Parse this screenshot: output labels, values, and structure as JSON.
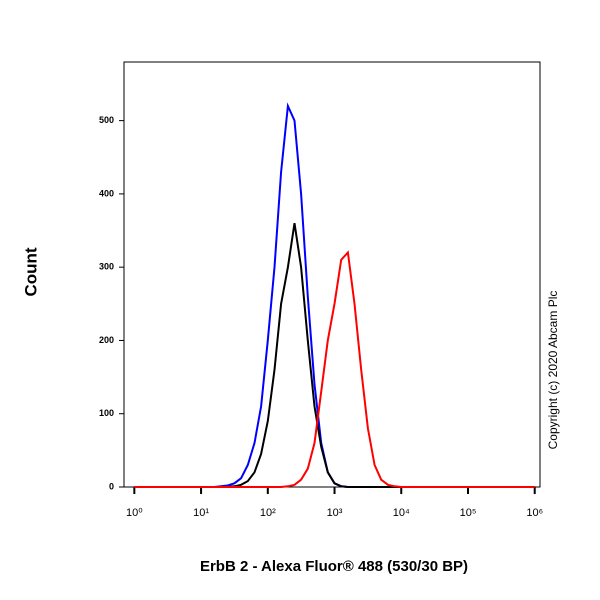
{
  "chart_data": {
    "type": "line",
    "xlabel": "ErbB 2 - Alexa Fluor® 488 (530/30 BP)",
    "ylabel": "Count",
    "annotation": "Copyright (c) 2020 Abcam Plc",
    "xscale": "log",
    "x": [
      1,
      10,
      12.6,
      15.8,
      20,
      25.1,
      31.6,
      39.8,
      50.1,
      63.1,
      79.4,
      100,
      126,
      158,
      200,
      251,
      316,
      398,
      501,
      631,
      794,
      1000,
      1259,
      1585,
      1995,
      2512,
      3162,
      3981,
      5012,
      6310,
      7943,
      10000,
      1000000
    ],
    "series": [
      {
        "name": "blue",
        "color": "#0000ff",
        "values": [
          0,
          0,
          0,
          0,
          1,
          2,
          5,
          12,
          30,
          60,
          110,
          200,
          300,
          430,
          520,
          500,
          400,
          260,
          140,
          60,
          20,
          5,
          1,
          0,
          0,
          0,
          0,
          0,
          0,
          0,
          0,
          0,
          0
        ]
      },
      {
        "name": "black",
        "color": "#000000",
        "values": [
          0,
          0,
          0,
          0,
          0,
          0,
          1,
          3,
          8,
          20,
          45,
          90,
          160,
          250,
          300,
          360,
          300,
          200,
          110,
          55,
          20,
          5,
          1,
          0,
          0,
          0,
          0,
          0,
          0,
          0,
          0,
          0,
          0
        ]
      },
      {
        "name": "red",
        "color": "#ff0000",
        "values": [
          0,
          0,
          0,
          0,
          0,
          0,
          0,
          0,
          0,
          0,
          0,
          0,
          0,
          0,
          1,
          3,
          10,
          25,
          60,
          130,
          200,
          250,
          310,
          320,
          250,
          160,
          80,
          30,
          10,
          3,
          1,
          0,
          0
        ]
      }
    ],
    "xlim": [
      0.7,
      1200000
    ],
    "ylim": [
      0,
      580
    ],
    "xticks": [
      {
        "value": 1,
        "label": "10⁰"
      },
      {
        "value": 10,
        "label": "10¹"
      },
      {
        "value": 100,
        "label": "10²"
      },
      {
        "value": 1000,
        "label": "10³"
      },
      {
        "value": 10000,
        "label": "10⁴"
      },
      {
        "value": 100000,
        "label": "10⁵"
      },
      {
        "value": 1000000,
        "label": "10⁶"
      }
    ],
    "yticks": [
      0,
      100,
      200,
      300,
      400,
      500
    ]
  }
}
